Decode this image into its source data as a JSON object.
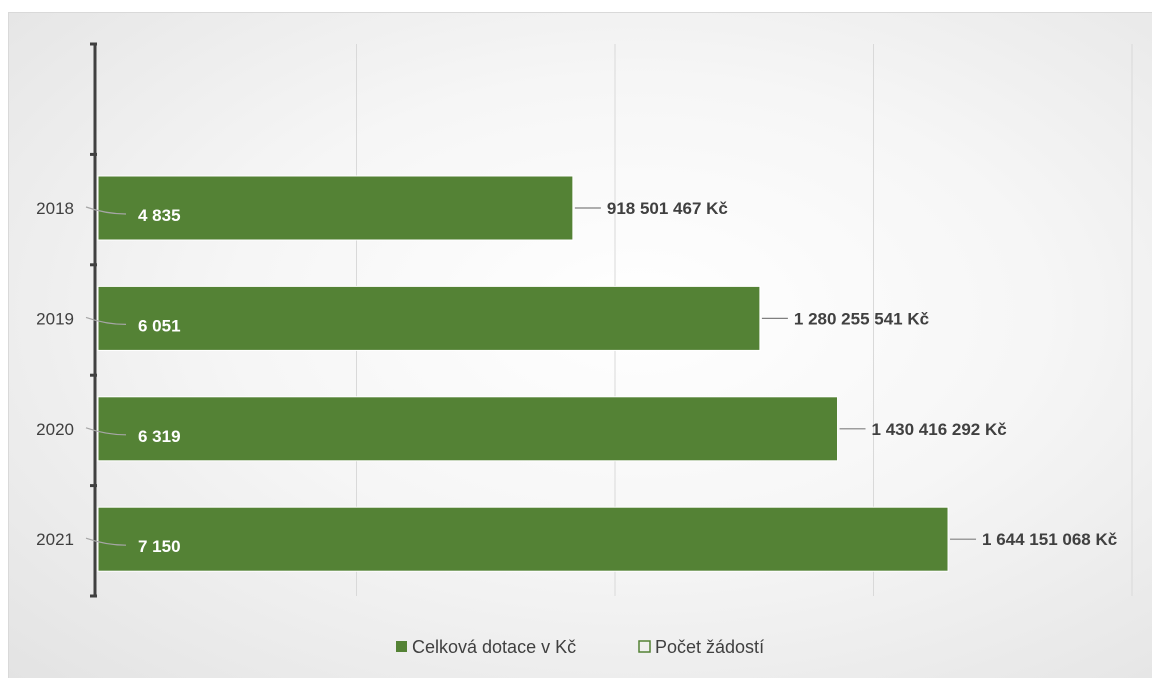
{
  "chart_data": {
    "type": "bar",
    "orientation": "horizontal",
    "categories": [
      "2018",
      "2019",
      "2020",
      "2021"
    ],
    "series": [
      {
        "name": "Celková dotace v Kč",
        "values": [
          918501467,
          1280255541,
          1430416292,
          1644151068
        ],
        "labels": [
          "918 501 467 Kč",
          "1 280 255 541 Kč",
          "1 430 416 292 Kč",
          "1 644 151 068 Kč"
        ],
        "color": "#548235"
      },
      {
        "name": "Počet žádostí",
        "values": [
          4835,
          6051,
          6319,
          7150
        ],
        "labels": [
          "4 835",
          "6 051",
          "6 319",
          "7 150"
        ],
        "color": "#548235"
      }
    ],
    "xlim": [
      0,
      2000000000
    ],
    "grid": true,
    "legend_position": "bottom"
  }
}
